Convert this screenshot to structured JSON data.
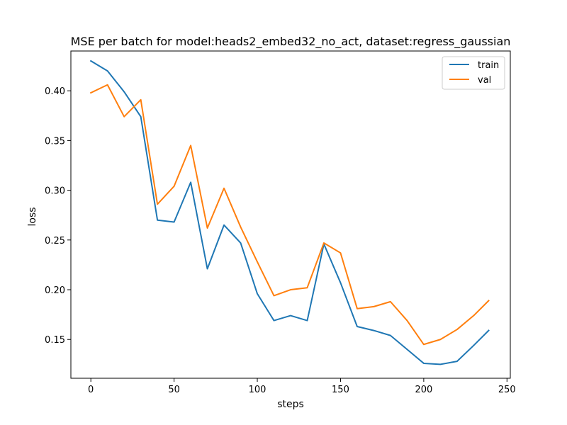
{
  "chart_data": {
    "type": "line",
    "title": "MSE per batch for model:heads2_embed32_no_act, dataset:regress_gaussian",
    "xlabel": "steps",
    "ylabel": "loss",
    "xlim": [
      -12,
      252
    ],
    "ylim": [
      0.111,
      0.44
    ],
    "x_ticks": [
      0,
      50,
      100,
      150,
      200,
      250
    ],
    "x_tick_labels": [
      "0",
      "50",
      "100",
      "150",
      "200",
      "250"
    ],
    "y_ticks": [
      0.15,
      0.2,
      0.25,
      0.3,
      0.35,
      0.4
    ],
    "y_tick_labels": [
      "0.15",
      "0.20",
      "0.25",
      "0.30",
      "0.35",
      "0.40"
    ],
    "grid": false,
    "legend_position": "top-right",
    "x": [
      0,
      10,
      20,
      30,
      40,
      50,
      60,
      70,
      80,
      90,
      100,
      110,
      120,
      130,
      140,
      150,
      160,
      170,
      180,
      190,
      200,
      210,
      220,
      230,
      239
    ],
    "series": [
      {
        "name": "train",
        "color": "#1f77b4",
        "values": [
          0.43,
          0.42,
          0.399,
          0.374,
          0.27,
          0.268,
          0.308,
          0.221,
          0.265,
          0.247,
          0.196,
          0.169,
          0.174,
          0.169,
          0.246,
          0.207,
          0.163,
          0.159,
          0.154,
          0.14,
          0.126,
          0.125,
          0.128,
          0.144,
          0.159
        ]
      },
      {
        "name": "val",
        "color": "#ff7f0e",
        "values": [
          0.398,
          0.406,
          0.374,
          0.391,
          0.286,
          0.304,
          0.345,
          0.262,
          0.302,
          0.263,
          0.228,
          0.194,
          0.2,
          0.202,
          0.247,
          0.237,
          0.181,
          0.183,
          0.188,
          0.169,
          0.145,
          0.15,
          0.16,
          0.174,
          0.189
        ]
      }
    ]
  }
}
